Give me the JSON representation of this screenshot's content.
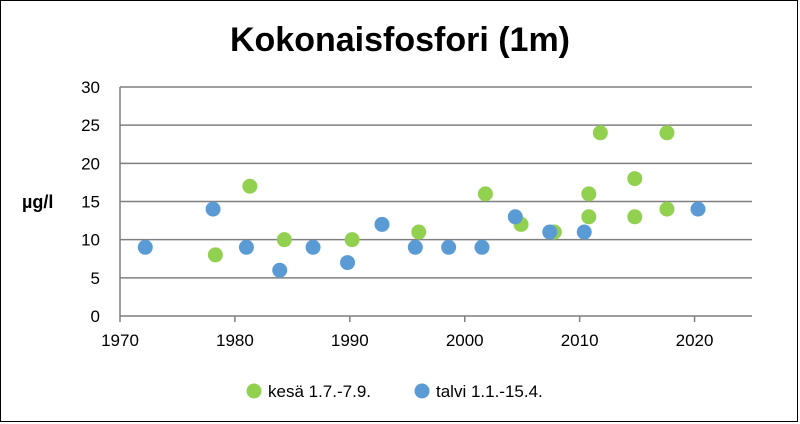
{
  "chart_data": {
    "type": "scatter",
    "title": "Kokonaisfosfori (1m)",
    "xlabel": "",
    "ylabel": "µg/l",
    "xlim": [
      1970,
      2025
    ],
    "ylim": [
      0,
      30
    ],
    "x_ticks": [
      "1970",
      "1980",
      "1990",
      "2000",
      "2010",
      "2020"
    ],
    "y_ticks": [
      "0",
      "5",
      "10",
      "15",
      "20",
      "25",
      "30"
    ],
    "grid": "horizontal",
    "legend_position": "bottom",
    "series": [
      {
        "name": "kesä 1.7.-7.9.",
        "color": "#92d050",
        "points": [
          {
            "x": 1978.3,
            "y": 8
          },
          {
            "x": 1981.3,
            "y": 17
          },
          {
            "x": 1984.3,
            "y": 10
          },
          {
            "x": 1990.2,
            "y": 10
          },
          {
            "x": 1996.0,
            "y": 11
          },
          {
            "x": 2001.8,
            "y": 16
          },
          {
            "x": 2004.9,
            "y": 12
          },
          {
            "x": 2007.8,
            "y": 11
          },
          {
            "x": 2010.8,
            "y": 16
          },
          {
            "x": 2010.8,
            "y": 13
          },
          {
            "x": 2011.8,
            "y": 24
          },
          {
            "x": 2014.8,
            "y": 18
          },
          {
            "x": 2014.8,
            "y": 13
          },
          {
            "x": 2017.6,
            "y": 24
          },
          {
            "x": 2017.6,
            "y": 14
          }
        ]
      },
      {
        "name": "talvi 1.1.-15.4.",
        "color": "#5b9bd5",
        "points": [
          {
            "x": 1972.2,
            "y": 9
          },
          {
            "x": 1978.1,
            "y": 14
          },
          {
            "x": 1981.0,
            "y": 9
          },
          {
            "x": 1983.9,
            "y": 6
          },
          {
            "x": 1986.8,
            "y": 9
          },
          {
            "x": 1989.8,
            "y": 7
          },
          {
            "x": 1992.8,
            "y": 12
          },
          {
            "x": 1995.7,
            "y": 9
          },
          {
            "x": 1998.6,
            "y": 9
          },
          {
            "x": 2001.5,
            "y": 9
          },
          {
            "x": 2004.4,
            "y": 13
          },
          {
            "x": 2007.4,
            "y": 11
          },
          {
            "x": 2010.4,
            "y": 11
          },
          {
            "x": 2020.3,
            "y": 14
          }
        ]
      }
    ]
  }
}
